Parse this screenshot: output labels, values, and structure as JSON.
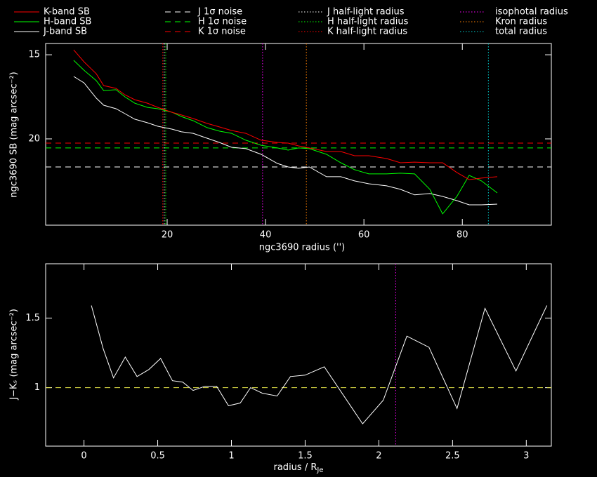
{
  "chart_data": [
    {
      "type": "line",
      "xlabel": "ngc3690 radius ('')",
      "ylabel": "ngc3690 SB (mag arcsec⁻²)",
      "x": [
        1.0,
        3.1,
        5.6,
        7.1,
        9.6,
        11.4,
        13.4,
        16.0,
        18.1,
        21.0,
        22.9,
        25.3,
        28.1,
        30.6,
        33.1,
        36.0,
        39.1,
        42.4,
        44.6,
        46.7,
        48.9,
        52.4,
        55.3,
        58.1,
        61.0,
        64.6,
        67.4,
        70.3,
        73.4,
        76.0,
        78.9,
        81.4,
        83.9,
        87.1
      ],
      "series": [
        {
          "name": "J-band SB",
          "color": "#ffffff",
          "values": [
            16.29,
            16.67,
            17.58,
            18.0,
            18.21,
            18.5,
            18.83,
            19.04,
            19.25,
            19.42,
            19.58,
            19.67,
            19.96,
            20.21,
            20.5,
            20.58,
            20.92,
            21.46,
            21.67,
            21.75,
            21.67,
            22.25,
            22.25,
            22.5,
            22.67,
            22.79,
            23.0,
            23.33,
            23.25,
            23.42,
            23.67,
            23.92,
            23.92,
            23.88
          ]
        },
        {
          "name": "H-band SB",
          "color": "#00ff00",
          "values": [
            15.33,
            15.92,
            16.54,
            17.13,
            17.08,
            17.5,
            17.88,
            18.13,
            18.21,
            18.42,
            18.67,
            18.92,
            19.33,
            19.54,
            19.67,
            20.08,
            20.38,
            20.54,
            20.67,
            20.54,
            20.58,
            20.92,
            21.42,
            21.83,
            22.08,
            22.08,
            22.04,
            22.08,
            23.0,
            24.46,
            23.42,
            22.17,
            22.5,
            23.21
          ]
        },
        {
          "name": "K-band SB",
          "color": "#ff0000",
          "values": [
            14.71,
            15.42,
            16.13,
            16.83,
            17.0,
            17.38,
            17.67,
            17.88,
            18.13,
            18.42,
            18.58,
            18.79,
            19.08,
            19.29,
            19.5,
            19.67,
            20.08,
            20.21,
            20.25,
            20.42,
            20.54,
            20.75,
            20.75,
            21.0,
            21.0,
            21.17,
            21.42,
            21.38,
            21.42,
            21.42,
            22.0,
            22.42,
            22.33,
            22.25
          ]
        }
      ],
      "hlines": [
        {
          "name": "J 1σ noise",
          "color": "#ffffff",
          "value": 21.67,
          "style": "dashed"
        },
        {
          "name": "H 1σ noise",
          "color": "#00ff00",
          "value": 20.54,
          "style": "dashed"
        },
        {
          "name": "K 1σ noise",
          "color": "#ff0000",
          "value": 20.25,
          "style": "dashed"
        }
      ],
      "vlines": [
        {
          "name": "J half-light radius",
          "color": "#ffffff",
          "value": 19.4,
          "style": "dotted"
        },
        {
          "name": "H half-light radius",
          "color": "#00ff00",
          "value": 19.7,
          "style": "dotted"
        },
        {
          "name": "K half-light radius",
          "color": "#ff0000",
          "value": 19.1,
          "style": "dotted"
        },
        {
          "name": "isophotal radius",
          "color": "#ff00ff",
          "value": 39.4,
          "style": "dotted"
        },
        {
          "name": "Kron radius",
          "color": "#ff8000",
          "value": 48.3,
          "style": "dotted"
        },
        {
          "name": "total radius",
          "color": "#00d0d0",
          "value": 85.3,
          "style": "dotted"
        }
      ],
      "xlim": [
        -4.7,
        98.1
      ],
      "ylim": [
        25.13,
        14.33
      ],
      "xticks": [
        20,
        40,
        60,
        80
      ],
      "yticks": [
        15,
        20
      ]
    },
    {
      "type": "line",
      "xlabel": "radius / R",
      "xlabel_subscript": "Je",
      "ylabel": "J−Kₛ (mag arcsec⁻²)",
      "x": [
        0.05,
        0.13,
        0.2,
        0.28,
        0.36,
        0.44,
        0.52,
        0.6,
        0.67,
        0.74,
        0.82,
        0.9,
        0.98,
        1.06,
        1.13,
        1.21,
        1.31,
        1.4,
        1.5,
        1.63,
        1.89,
        2.03,
        2.19,
        2.34,
        2.53,
        2.72,
        2.93,
        3.14
      ],
      "series": [
        {
          "color": "#ffffff",
          "values": [
            1.59,
            1.28,
            1.07,
            1.22,
            1.08,
            1.13,
            1.21,
            1.05,
            1.04,
            0.98,
            1.01,
            1.01,
            0.87,
            0.89,
            1.0,
            0.96,
            0.94,
            1.08,
            1.09,
            1.15,
            0.74,
            0.91,
            1.37,
            1.29,
            0.85,
            1.57,
            1.12,
            1.59
          ]
        }
      ],
      "hlines": [
        {
          "color": "#e8e84a",
          "value": 1,
          "style": "dashed"
        }
      ],
      "vlines": [
        {
          "color": "#ff00ff",
          "value": 2.114,
          "style": "dotted"
        }
      ],
      "xlim": [
        -0.26,
        3.17
      ],
      "ylim": [
        0.58,
        1.89
      ],
      "xticks": [
        0,
        0.5,
        1,
        1.5,
        2,
        2.5,
        3
      ],
      "yticks": [
        1,
        1.5
      ]
    }
  ]
}
